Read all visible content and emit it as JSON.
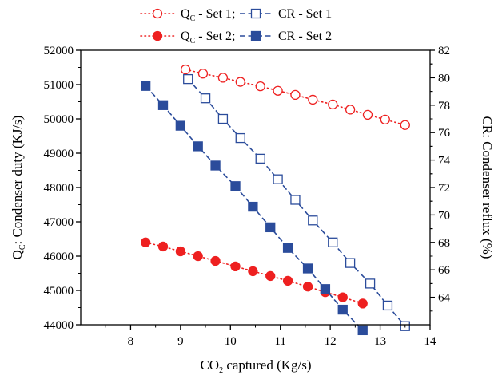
{
  "chart_data": {
    "type": "scatter",
    "xlabel_parts": [
      "CO",
      "2",
      " captured (Kg/s)"
    ],
    "ylabel_left_parts": [
      "Q",
      "C",
      ": Condenser duty (KJ/s)"
    ],
    "ylabel_right": "CR: Condenser reflux (%)",
    "xlim": [
      7,
      14
    ],
    "ylim_left": [
      44000,
      52000
    ],
    "ylim_right": [
      62,
      82
    ],
    "x_ticks": [
      "8",
      "9",
      "10",
      "11",
      "12",
      "13",
      "14"
    ],
    "y_left_ticks": [
      "44000",
      "45000",
      "46000",
      "47000",
      "48000",
      "49000",
      "50000",
      "51000",
      "52000"
    ],
    "y_right_ticks": [
      "64",
      "66",
      "68",
      "70",
      "72",
      "74",
      "76",
      "78",
      "80",
      "82"
    ],
    "legend_position": "top-center",
    "series": [
      {
        "legend_parts": [
          "Q",
          "C",
          " - Set 1;"
        ],
        "axis": "left",
        "marker": "circle-open",
        "color": "#ee2020",
        "x": [
          9.1,
          9.45,
          9.85,
          10.2,
          10.6,
          10.95,
          11.3,
          11.65,
          12.05,
          12.4,
          12.75,
          13.1,
          13.5
        ],
        "y": [
          51440,
          51320,
          51200,
          51080,
          50950,
          50820,
          50700,
          50560,
          50420,
          50270,
          50120,
          49980,
          49820
        ]
      },
      {
        "legend_parts": [
          "CR - Set 1"
        ],
        "axis": "right",
        "marker": "square-open",
        "color": "#2b4c9b",
        "x": [
          9.15,
          9.5,
          9.85,
          10.2,
          10.6,
          10.95,
          11.3,
          11.65,
          12.05,
          12.4,
          12.8,
          13.15,
          13.5
        ],
        "y": [
          79.9,
          78.5,
          77.0,
          75.6,
          74.1,
          72.6,
          71.1,
          69.6,
          68.0,
          66.5,
          65.0,
          63.4,
          61.9
        ]
      },
      {
        "legend_parts": [
          "Q",
          "C",
          " - Set 2;"
        ],
        "axis": "left",
        "marker": "circle-filled",
        "color": "#ee2020",
        "x": [
          8.3,
          8.65,
          9.0,
          9.35,
          9.7,
          10.1,
          10.45,
          10.8,
          11.15,
          11.55,
          11.9,
          12.25,
          12.65
        ],
        "y": [
          46400,
          46280,
          46140,
          46000,
          45860,
          45700,
          45560,
          45420,
          45280,
          45110,
          44950,
          44800,
          44620
        ]
      },
      {
        "legend_parts": [
          "CR - Set 2"
        ],
        "axis": "right",
        "marker": "square-filled",
        "color": "#2b4c9b",
        "x": [
          8.3,
          8.65,
          9.0,
          9.35,
          9.7,
          10.1,
          10.45,
          10.8,
          11.15,
          11.55,
          11.9,
          12.25,
          12.65
        ],
        "y": [
          79.4,
          78.0,
          76.5,
          75.0,
          73.6,
          72.1,
          70.6,
          69.1,
          67.6,
          66.1,
          64.6,
          63.1,
          61.6
        ]
      }
    ]
  }
}
